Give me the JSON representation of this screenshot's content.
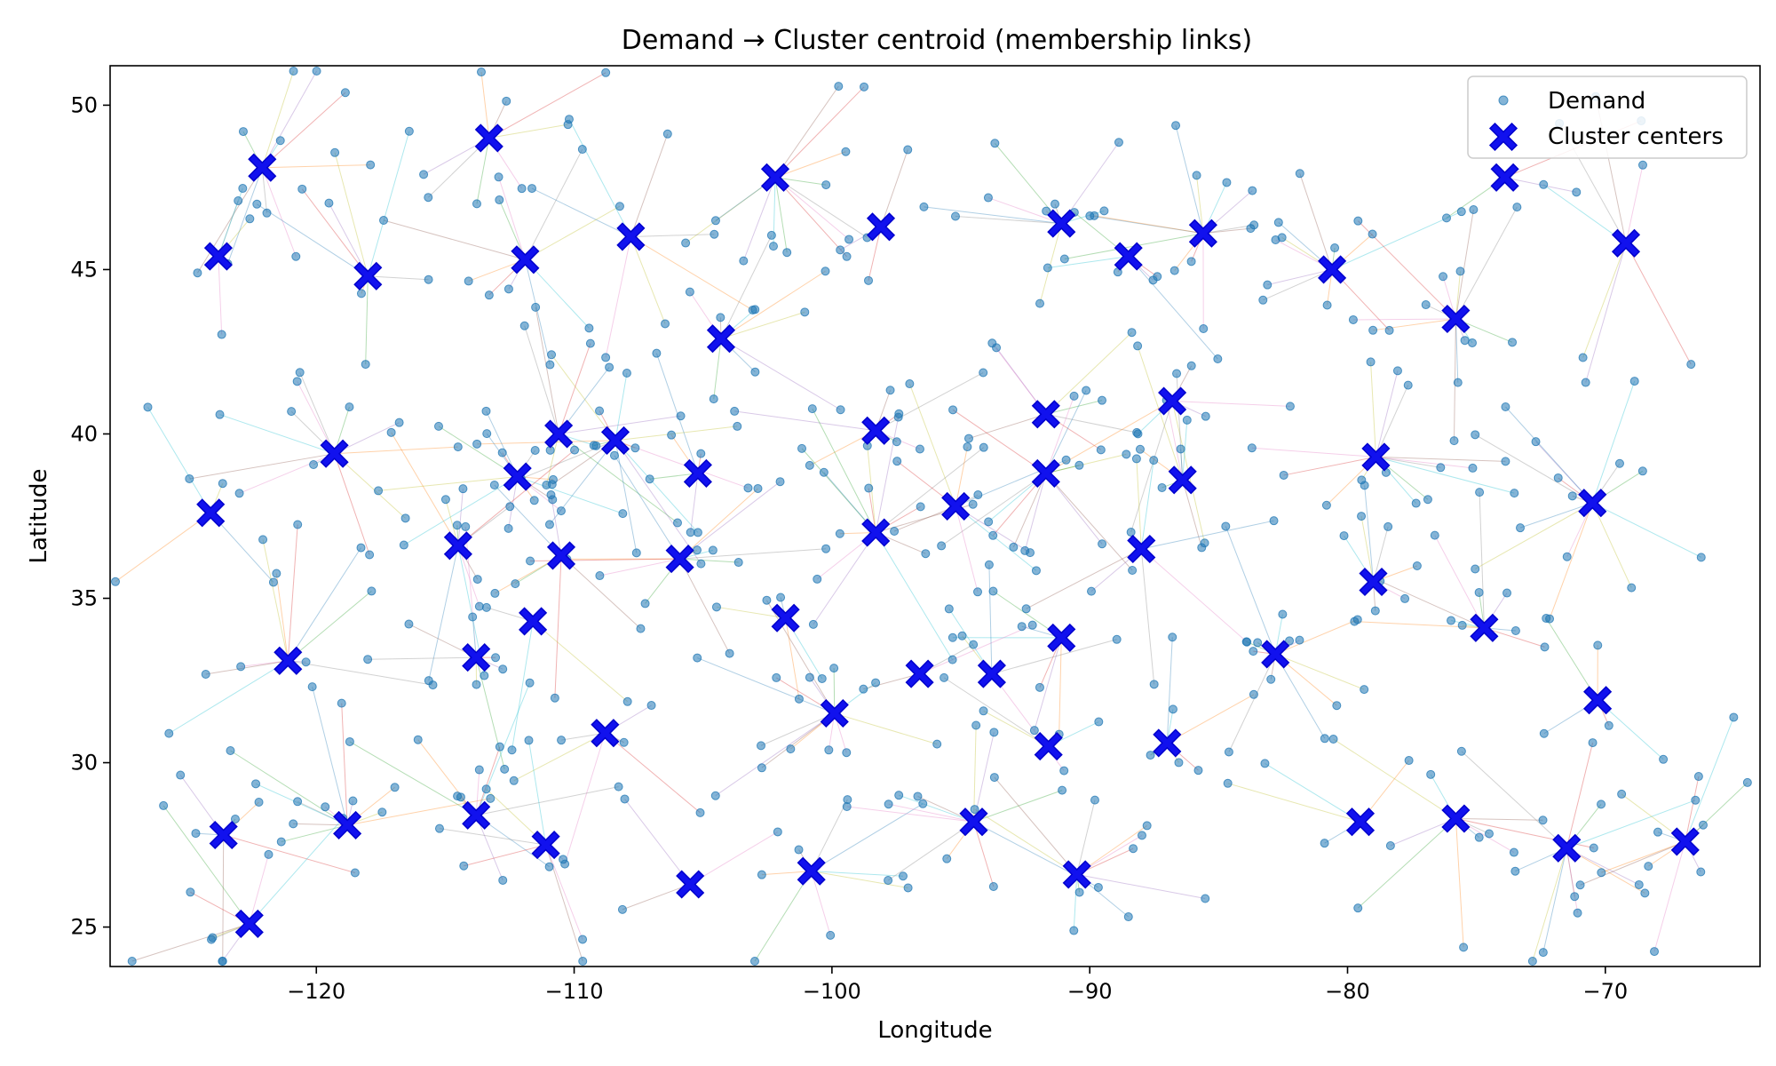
{
  "chart_data": {
    "type": "scatter",
    "title": "Demand → Cluster centroid (membership links)",
    "xlabel": "Longitude",
    "ylabel": "Latitude",
    "xlim": [
      -128,
      -64
    ],
    "ylim": [
      23.8,
      51.2
    ],
    "xticks": [
      -120,
      -110,
      -100,
      -90,
      -80,
      -70
    ],
    "xtick_labels": [
      "−120",
      "−110",
      "−100",
      "−90",
      "−80",
      "−70"
    ],
    "yticks": [
      25,
      30,
      35,
      40,
      45,
      50
    ],
    "yticks_labels": [
      "25",
      "30",
      "35",
      "40",
      "45",
      "50"
    ],
    "grid": false,
    "legend_position": "top-right",
    "link_colors": [
      "#1f77b4",
      "#ff7f0e",
      "#2ca02c",
      "#d62728",
      "#9467bd",
      "#8c564b",
      "#e377c2",
      "#7f7f7f",
      "#bcbd22",
      "#17becf"
    ],
    "series": [
      {
        "name": "Demand",
        "color": "#1f77b4",
        "marker": "circle",
        "description_of_links": "each demand point connected by a thin line to its cluster center"
      },
      {
        "name": "Cluster centers",
        "color": "#1111ee",
        "marker": "x-filled",
        "points": [
          [
            -122.1,
            48.1
          ],
          [
            -113.3,
            49.0
          ],
          [
            -102.2,
            47.8
          ],
          [
            -98.1,
            46.3
          ],
          [
            -91.1,
            46.4
          ],
          [
            -107.8,
            46.0
          ],
          [
            -123.8,
            45.4
          ],
          [
            -118.0,
            44.8
          ],
          [
            -111.9,
            45.3
          ],
          [
            -88.5,
            45.4
          ],
          [
            -85.6,
            46.1
          ],
          [
            -80.6,
            45.0
          ],
          [
            -73.9,
            47.8
          ],
          [
            -69.2,
            45.8
          ],
          [
            -104.3,
            42.9
          ],
          [
            -75.8,
            43.5
          ],
          [
            -119.3,
            39.4
          ],
          [
            -110.6,
            40.0
          ],
          [
            -108.4,
            39.8
          ],
          [
            -112.2,
            38.7
          ],
          [
            -105.2,
            38.8
          ],
          [
            -98.3,
            40.1
          ],
          [
            -91.7,
            40.6
          ],
          [
            -91.7,
            38.8
          ],
          [
            -86.8,
            41.0
          ],
          [
            -86.4,
            38.6
          ],
          [
            -78.9,
            39.3
          ],
          [
            -70.5,
            37.9
          ],
          [
            -124.1,
            37.6
          ],
          [
            -114.5,
            36.6
          ],
          [
            -110.5,
            36.3
          ],
          [
            -105.9,
            36.2
          ],
          [
            -98.3,
            37.0
          ],
          [
            -95.2,
            37.8
          ],
          [
            -88.0,
            36.5
          ],
          [
            -79.0,
            35.5
          ],
          [
            -121.1,
            33.1
          ],
          [
            -111.6,
            34.3
          ],
          [
            -101.8,
            34.4
          ],
          [
            -91.1,
            33.8
          ],
          [
            -82.8,
            33.3
          ],
          [
            -74.7,
            34.1
          ],
          [
            -113.8,
            33.2
          ],
          [
            -108.8,
            30.9
          ],
          [
            -99.9,
            31.5
          ],
          [
            -96.6,
            32.7
          ],
          [
            -93.8,
            32.7
          ],
          [
            -91.6,
            30.5
          ],
          [
            -87.0,
            30.6
          ],
          [
            -70.3,
            31.9
          ],
          [
            -123.6,
            27.8
          ],
          [
            -118.8,
            28.1
          ],
          [
            -113.8,
            28.4
          ],
          [
            -111.1,
            27.5
          ],
          [
            -105.5,
            26.3
          ],
          [
            -100.8,
            26.7
          ],
          [
            -94.5,
            28.2
          ],
          [
            -90.5,
            26.6
          ],
          [
            -79.5,
            28.2
          ],
          [
            -75.8,
            28.3
          ],
          [
            -71.5,
            27.4
          ],
          [
            -66.9,
            27.6
          ],
          [
            -122.6,
            25.1
          ]
        ]
      }
    ]
  }
}
